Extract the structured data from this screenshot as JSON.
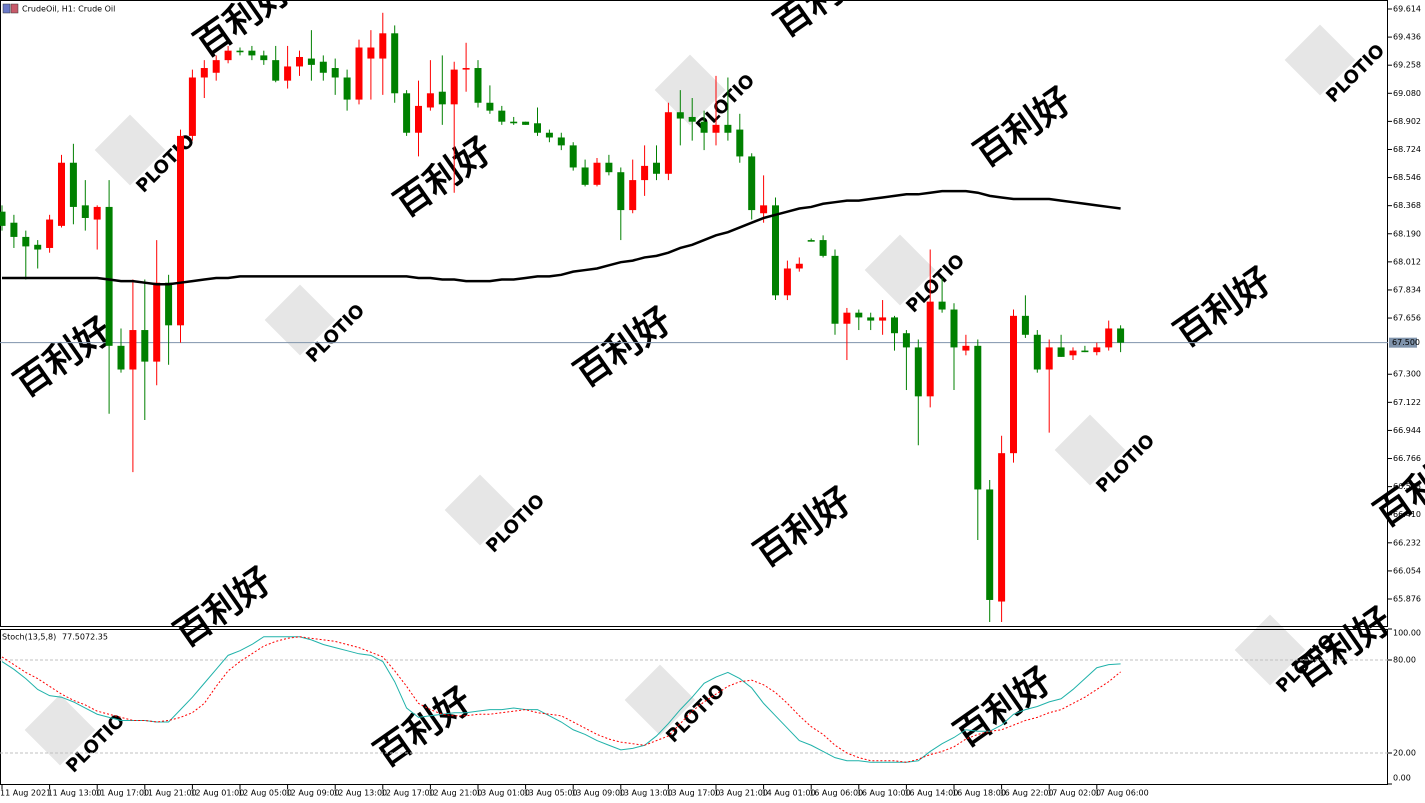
{
  "chart_data": {
    "type": "candlestick",
    "title": "CrudeOil, H1:  Crude Oil",
    "categories": [
      "11 Aug 2021",
      null,
      null,
      null,
      "11 Aug 13:00",
      null,
      null,
      null,
      "11 Aug 17:00",
      null,
      null,
      null,
      "11 Aug 21:00",
      null,
      null,
      null,
      "12 Aug 01:00",
      null,
      null,
      null,
      "12 Aug 05:00",
      null,
      null,
      null,
      "12 Aug 09:00",
      null,
      null,
      null,
      "12 Aug 13:00",
      null,
      null,
      null,
      "12 Aug 17:00",
      null,
      null,
      null,
      "12 Aug 21:00",
      null,
      null,
      null,
      "13 Aug 01:00",
      null,
      null,
      null,
      "13 Aug 05:00",
      null,
      null,
      null,
      "13 Aug 09:00",
      null,
      null,
      null,
      "13 Aug 13:00",
      null,
      null,
      null,
      "13 Aug 17:00",
      null,
      null,
      null,
      "13 Aug 21:00",
      null,
      null,
      null,
      "14 Aug 01:00",
      null,
      null,
      null,
      "16 Aug 06:00",
      null,
      null,
      null,
      "16 Aug 10:00",
      null,
      null,
      null,
      "16 Aug 14:00",
      null,
      null,
      null,
      "16 Aug 18:00",
      null,
      null,
      null,
      "16 Aug 22:00",
      null,
      null,
      null,
      "17 Aug 02:00",
      null,
      null,
      null,
      "17 Aug 06:00",
      null,
      null
    ],
    "open": [
      68.33,
      68.26,
      68.17,
      68.12,
      68.1,
      68.24,
      68.64,
      68.37,
      68.28,
      68.36,
      67.48,
      67.33,
      67.58,
      67.38,
      67.88,
      67.61,
      68.81,
      69.18,
      69.21,
      69.29,
      69.35,
      69.35,
      69.32,
      69.29,
      69.16,
      69.25,
      69.3,
      69.28,
      69.24,
      69.18,
      69.04,
      69.3,
      69.3,
      69.46,
      69.08,
      68.83,
      68.99,
      69.09,
      69.01,
      69.23,
      69.24,
      69.02,
      68.97,
      68.9,
      68.9,
      68.89,
      68.83,
      68.8,
      68.75,
      68.61,
      68.5,
      68.64,
      68.58,
      68.34,
      68.53,
      68.64,
      68.57,
      68.96,
      68.93,
      68.9,
      68.83,
      68.88,
      68.85,
      68.68,
      68.32,
      68.37,
      67.8,
      67.97,
      68.15,
      68.15,
      68.05,
      67.62,
      67.69,
      67.66,
      67.64,
      67.66,
      67.56,
      67.47,
      67.16,
      67.76,
      67.71,
      67.45,
      67.48,
      66.57,
      65.86,
      66.8,
      67.67,
      67.55,
      67.33,
      67.47,
      67.42,
      67.45,
      67.44,
      67.47,
      67.59
    ],
    "high": [
      68.37,
      68.31,
      68.21,
      68.15,
      68.31,
      68.69,
      68.76,
      68.53,
      68.37,
      68.53,
      67.59,
      67.9,
      67.9,
      68.15,
      67.93,
      68.85,
      69.23,
      69.29,
      69.32,
      69.38,
      69.37,
      69.38,
      69.35,
      69.38,
      69.38,
      69.35,
      69.48,
      69.32,
      69.3,
      69.23,
      69.42,
      69.48,
      69.59,
      69.51,
      69.1,
      69.16,
      69.29,
      69.32,
      69.28,
      69.4,
      69.29,
      69.13,
      69.0,
      68.93,
      68.9,
      68.99,
      68.85,
      68.83,
      68.77,
      68.66,
      68.67,
      68.69,
      68.61,
      68.66,
      68.75,
      68.75,
      69.02,
      69.1,
      69.05,
      68.97,
      69.19,
      69.18,
      68.95,
      68.7,
      68.56,
      68.42,
      68.02,
      68.04,
      68.16,
      68.18,
      68.09,
      67.72,
      67.71,
      67.69,
      67.77,
      67.67,
      67.58,
      67.52,
      68.09,
      67.91,
      67.75,
      67.55,
      67.52,
      66.63,
      66.91,
      67.71,
      67.8,
      67.58,
      67.52,
      67.55,
      67.47,
      67.48,
      67.5,
      67.64,
      67.61
    ],
    "low": [
      68.21,
      68.1,
      67.9,
      67.97,
      68.07,
      68.23,
      68.25,
      68.21,
      68.09,
      67.05,
      67.31,
      66.68,
      67.01,
      67.23,
      67.36,
      67.5,
      68.78,
      69.05,
      69.16,
      69.27,
      69.32,
      69.29,
      69.26,
      69.15,
      69.11,
      69.19,
      69.16,
      69.16,
      69.07,
      68.97,
      69.01,
      69.04,
      69.07,
      69.02,
      68.81,
      68.68,
      68.97,
      68.88,
      68.45,
      69.09,
      68.99,
      68.95,
      68.88,
      68.88,
      68.88,
      68.81,
      68.77,
      68.72,
      68.59,
      68.49,
      68.49,
      68.56,
      68.15,
      68.32,
      68.43,
      68.53,
      68.53,
      68.75,
      68.78,
      68.72,
      68.75,
      68.78,
      68.64,
      68.28,
      68.26,
      67.77,
      67.77,
      67.95,
      68.14,
      68.04,
      67.55,
      67.39,
      67.58,
      67.58,
      67.55,
      67.45,
      67.2,
      66.85,
      67.09,
      67.69,
      67.2,
      67.42,
      66.25,
      65.73,
      65.73,
      66.74,
      67.53,
      67.31,
      66.93,
      67.41,
      67.39,
      67.44,
      67.42,
      67.45,
      67.44
    ],
    "close": [
      68.24,
      68.17,
      68.11,
      68.09,
      68.28,
      68.64,
      68.36,
      68.29,
      68.36,
      67.48,
      67.33,
      67.58,
      67.38,
      67.88,
      67.61,
      68.81,
      69.18,
      69.24,
      69.29,
      69.35,
      69.34,
      69.32,
      69.29,
      69.16,
      69.25,
      69.31,
      69.26,
      69.21,
      69.18,
      69.04,
      69.37,
      69.37,
      69.46,
      69.08,
      68.83,
      69.0,
      69.08,
      69.01,
      69.23,
      69.24,
      69.02,
      68.97,
      68.9,
      68.89,
      68.88,
      68.83,
      68.8,
      68.75,
      68.61,
      68.5,
      68.64,
      68.58,
      68.34,
      68.53,
      68.62,
      68.57,
      68.96,
      68.92,
      68.9,
      68.83,
      68.88,
      68.83,
      68.68,
      68.34,
      68.37,
      67.8,
      67.97,
      68.0,
      68.14,
      68.05,
      67.62,
      67.69,
      67.66,
      67.64,
      67.66,
      67.56,
      67.47,
      67.16,
      67.76,
      67.71,
      67.47,
      67.48,
      66.57,
      65.87,
      66.8,
      67.67,
      67.55,
      67.33,
      67.47,
      67.41,
      67.45,
      67.44,
      67.47,
      67.59,
      67.5
    ],
    "up_color": "#ff0000",
    "down_color": "#008000",
    "ylim": [
      65.705,
      69.671
    ],
    "yticks": [
      69.614,
      69.436,
      69.258,
      {
        "value": 69.08,
        "label": "69.080"
      },
      68.902,
      68.724,
      68.546,
      68.368,
      {
        "value": 68.19,
        "label": "68.190"
      },
      68.012,
      67.834,
      67.656,
      {
        "value": 67.3,
        "label": "67.300"
      },
      67.122,
      66.944,
      66.766,
      66.588,
      {
        "value": 66.41,
        "label": "66.410"
      },
      66.232,
      66.054,
      65.876
    ],
    "moving_average": {
      "color": "#000000",
      "values": [
        67.91,
        67.91,
        67.91,
        67.91,
        67.91,
        67.91,
        67.91,
        67.91,
        67.91,
        67.9,
        67.89,
        67.89,
        67.88,
        67.87,
        67.87,
        67.88,
        67.89,
        67.9,
        67.91,
        67.91,
        67.92,
        67.92,
        67.92,
        67.92,
        67.92,
        67.92,
        67.92,
        67.92,
        67.92,
        67.92,
        67.92,
        67.92,
        67.92,
        67.92,
        67.92,
        67.91,
        67.91,
        67.9,
        67.9,
        67.89,
        67.89,
        67.89,
        67.9,
        67.9,
        67.91,
        67.92,
        67.92,
        67.93,
        67.95,
        67.96,
        67.97,
        67.99,
        68.01,
        68.02,
        68.04,
        68.05,
        68.07,
        68.1,
        68.12,
        68.15,
        68.18,
        68.2,
        68.23,
        68.26,
        68.29,
        68.31,
        68.33,
        68.35,
        68.36,
        68.38,
        68.39,
        68.4,
        68.4,
        68.41,
        68.42,
        68.43,
        68.44,
        68.44,
        68.45,
        68.46,
        68.46,
        68.46,
        68.45,
        68.43,
        68.42,
        68.41,
        68.41,
        68.41,
        68.41,
        68.4,
        68.39,
        68.38,
        68.37,
        68.36,
        68.35
      ]
    },
    "current_price": {
      "value": 67.5,
      "label": "67.500",
      "color": "#7f93ab"
    },
    "stochastic": {
      "label": "Stoch(13,5,8)",
      "ylim": [
        0,
        100
      ],
      "yticks": [
        {
          "value": 100,
          "label": "100.00"
        },
        {
          "value": 80,
          "label": "80.00"
        },
        {
          "value": 20,
          "label": "20.00"
        },
        {
          "value": 0,
          "label": "0.00"
        }
      ],
      "levels": [
        80,
        20
      ],
      "series": [
        {
          "color": "#20b2aa",
          "dashed": false,
          "current_label": "77.50",
          "values": [
            79,
            74,
            68,
            61,
            57,
            56,
            53,
            49,
            45,
            43,
            41,
            41,
            41,
            40,
            40,
            48,
            56,
            65,
            74,
            83,
            86,
            90,
            95,
            95,
            95,
            95,
            93,
            90,
            88,
            86,
            84,
            83,
            79,
            66,
            49,
            43,
            44,
            45,
            46,
            46,
            47,
            48,
            48,
            49,
            48,
            48,
            44,
            40,
            35,
            32,
            28,
            25,
            22,
            23,
            25,
            31,
            39,
            48,
            56,
            65,
            69,
            72,
            68,
            62,
            52,
            44,
            36,
            28,
            25,
            21,
            17,
            15,
            15,
            14,
            14,
            14,
            14,
            15,
            21,
            26,
            30,
            35,
            34,
            34,
            38,
            45,
            48,
            50,
            53,
            55,
            61,
            68,
            75,
            77,
            77.5
          ]
        },
        {
          "color": "#ff0000",
          "dashed": true,
          "current_label": "72.35",
          "values": [
            82,
            77,
            72,
            68,
            63,
            58,
            54,
            51,
            47,
            45,
            43,
            41,
            41,
            40,
            41,
            43,
            46,
            52,
            63,
            73,
            79,
            84,
            89,
            92,
            94,
            95,
            94,
            93,
            92,
            90,
            88,
            85,
            82,
            73,
            63,
            52,
            48,
            45,
            44,
            44,
            45,
            45,
            46,
            47,
            48,
            46,
            45,
            44,
            40,
            36,
            32,
            29,
            27,
            26,
            25,
            28,
            31,
            39,
            47,
            53,
            58,
            63,
            66,
            67,
            64,
            59,
            52,
            44,
            37,
            32,
            25,
            20,
            17,
            15,
            15,
            15,
            14,
            16,
            19,
            21,
            24,
            29,
            32,
            34,
            35,
            38,
            41,
            43,
            46,
            48,
            52,
            56,
            61,
            66,
            72.35
          ]
        }
      ]
    },
    "watermark": {
      "text": "百利好",
      "logo": "PLOTIO",
      "color": "#e6e6e6"
    }
  }
}
